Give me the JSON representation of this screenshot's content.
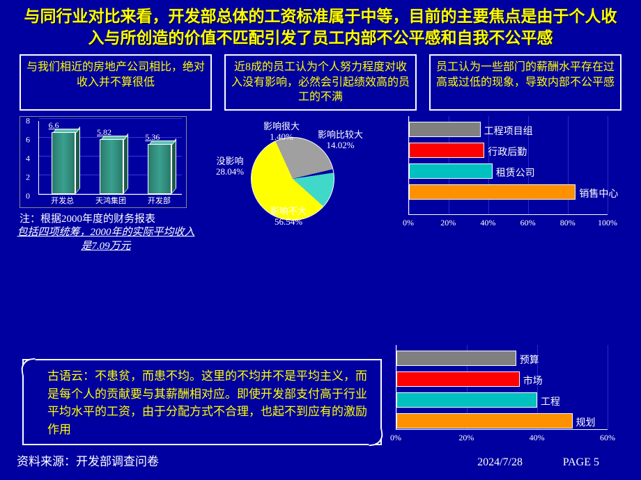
{
  "title": "与同行业对比来看，开发部总体的工资标准属于中等，目前的主要焦点是由于个人收入与所创造的价值不匹配引发了员工内部不公平感和自我不公平感",
  "boxes": {
    "left": "与我们相近的房地产公司相比，绝对收入并不算很低",
    "mid": "近8成的员工认为个人努力程度对收入没有影响，必然会引起绩效高的员工的不满",
    "right": "员工认为一些部门的薪酬水平存在过高或过低的现象，导致内部不公平感"
  },
  "bar_chart": {
    "ymax": 8,
    "ytick_step": 2,
    "categories": [
      "开发总",
      "天鸿集团",
      "开发部"
    ],
    "values": [
      6.6,
      5.82,
      5.36
    ],
    "value_labels": [
      "6.6",
      "5.82",
      "5.36"
    ],
    "bar_fill": "#3aa090",
    "bar_top": "#5fc0b0",
    "bar_side": "#1e5a4e",
    "grid_color": "#3a3ad0"
  },
  "bar_note1": "注：根据2000年度的财务报表",
  "bar_note2": "包括四项统筹，2000年的实际平均收入是7.09万元",
  "pie": {
    "slices": [
      {
        "label": "影响不大",
        "pct": "56.54%",
        "value": 56.54,
        "color": "#ffff00"
      },
      {
        "label": "没影响",
        "pct": "28.04%",
        "value": 28.04,
        "color": "#a0a0a0"
      },
      {
        "label": "影响很大",
        "pct": "1.40%",
        "value": 1.4,
        "color": "#0000a0"
      },
      {
        "label": "影响比较大",
        "pct": "14.02%",
        "value": 14.02,
        "color": "#40d8c8"
      }
    ]
  },
  "hbar1": {
    "xmax": 100,
    "xtick_step": 20,
    "tick_suffix": "%",
    "bars": [
      {
        "label": "工程项目组",
        "value": 36,
        "color": "#808080"
      },
      {
        "label": "行政后勤",
        "value": 38,
        "color": "#ff0000"
      },
      {
        "label": "租赁公司",
        "value": 42,
        "color": "#00c0c0"
      },
      {
        "label": "销售中心",
        "value": 84,
        "color": "#ff9000"
      }
    ]
  },
  "hbar2": {
    "xmax": 60,
    "xtick_step": 20,
    "tick_suffix": "%",
    "bars": [
      {
        "label": "预算",
        "value": 34,
        "color": "#808080"
      },
      {
        "label": "市场",
        "value": 35,
        "color": "#ff0000"
      },
      {
        "label": "工程",
        "value": 40,
        "color": "#00c0c0"
      },
      {
        "label": "规划",
        "value": 50,
        "color": "#ff9000"
      }
    ]
  },
  "quote": "古语云：不患贫，而患不均。这里的不均并不是平均主义，而是每个人的贡献要与其薪酬相对应。即使开发部支付高于行业平均水平的工资，由于分配方式不合理，也起不到应有的激励作用",
  "footer_source": "资料来源：开发部调查问卷",
  "footer_date": "2024/7/28",
  "footer_page": "PAGE 5",
  "colors": {
    "bg": "#0000a0",
    "accent": "#ffff00",
    "text": "#ffffff"
  }
}
